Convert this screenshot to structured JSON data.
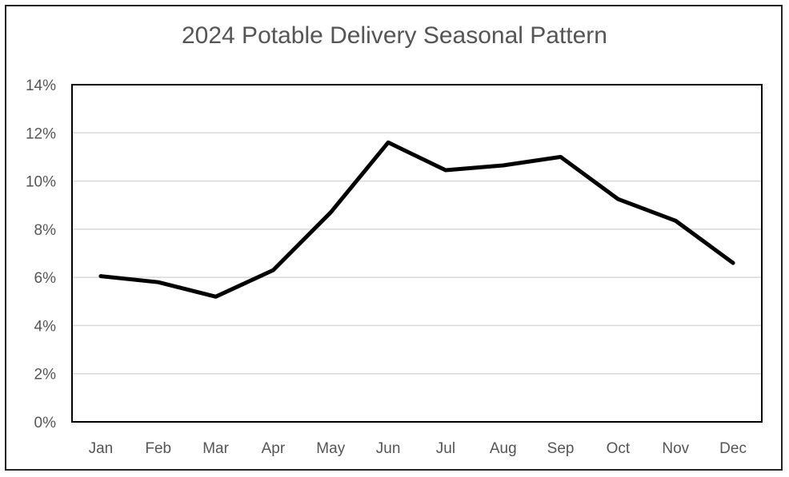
{
  "chart_data": {
    "type": "line",
    "title": "2024 Potable Delivery Seasonal Pattern",
    "xlabel": "",
    "ylabel": "",
    "categories": [
      "Jan",
      "Feb",
      "Mar",
      "Apr",
      "May",
      "Jun",
      "Jul",
      "Aug",
      "Sep",
      "Oct",
      "Nov",
      "Dec"
    ],
    "series": [
      {
        "values": [
          6.05,
          5.8,
          5.2,
          6.3,
          8.7,
          11.6,
          10.45,
          10.65,
          11.0,
          9.25,
          8.35,
          6.6
        ]
      }
    ],
    "ylim": [
      0,
      14
    ],
    "yticks": [
      "0%",
      "2%",
      "4%",
      "6%",
      "8%",
      "10%",
      "12%",
      "14%"
    ],
    "grid": true,
    "legend": "none",
    "colors": {
      "line": "#000000",
      "grid": "#d9d9d9",
      "axis": "#000000"
    }
  }
}
